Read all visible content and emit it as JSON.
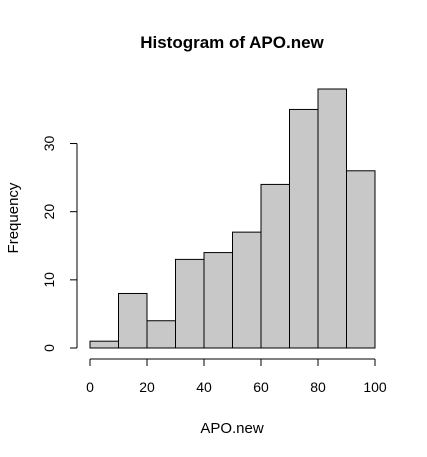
{
  "chart_data": {
    "type": "bar",
    "title": "Histogram of APO.new",
    "xlabel": "APO.new",
    "ylabel": "Frequency",
    "bin_edges": [
      0,
      10,
      20,
      30,
      40,
      50,
      60,
      70,
      80,
      90,
      100
    ],
    "values": [
      1,
      8,
      4,
      13,
      14,
      17,
      24,
      35,
      38,
      26
    ],
    "xlim": [
      0,
      100
    ],
    "ylim": [
      0,
      38
    ],
    "x_ticks": [
      0,
      20,
      40,
      60,
      80,
      100
    ],
    "y_ticks": [
      0,
      10,
      20,
      30
    ],
    "bar_color": "#c8c8c8",
    "grid": false
  }
}
